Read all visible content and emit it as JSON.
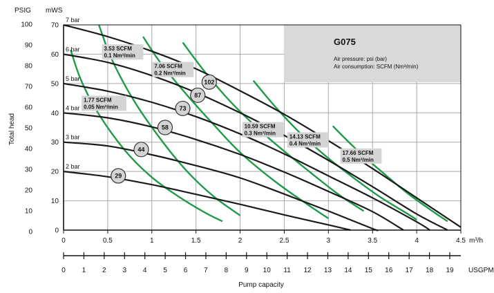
{
  "chart_data": {
    "type": "line",
    "model": "G075",
    "legend_lines": [
      "Air pressure: psi (bar)",
      "Air consumption: SCFM (Nm³/min)"
    ],
    "xlabel": "Pump capacity",
    "ylabel": "Total head",
    "x_unit_primary": "m³/h",
    "x_unit_secondary": "USGPM",
    "y_unit_primary": "mWS",
    "y_unit_secondary": "PSIG",
    "xlim": [
      0,
      4.5
    ],
    "ylim": [
      0,
      70
    ],
    "x_ticks": [
      0,
      0.5,
      1,
      1.5,
      2,
      2.5,
      3,
      3.5,
      4,
      4.5
    ],
    "x_tick_labels": [
      "0",
      "0.5",
      "1",
      "1.5",
      "2",
      "2.5",
      "3",
      "3.5",
      "4",
      "4.5"
    ],
    "y_ticks": [
      0,
      10,
      20,
      30,
      40,
      50,
      60,
      70
    ],
    "y_tick_labels": [
      "0",
      "10",
      "20",
      "30",
      "40",
      "50",
      "60",
      "70"
    ],
    "usgpm_ticks": [
      0,
      1,
      2,
      3,
      4,
      5,
      6,
      7,
      8,
      9,
      10,
      11,
      12,
      13,
      14,
      15,
      16,
      17,
      18,
      19
    ],
    "psig_ticks": [
      0,
      10,
      20,
      30,
      40,
      50,
      60,
      70,
      80,
      90,
      100
    ],
    "grid": true,
    "pressure_curves": [
      {
        "name": "2 bar",
        "x": [
          0,
          0.5,
          1.0,
          1.5,
          2.0,
          2.5,
          3.0,
          3.25
        ],
        "y": [
          20,
          18.2,
          15.5,
          12.2,
          8.8,
          5.2,
          1.8,
          0
        ]
      },
      {
        "name": "3 bar",
        "x": [
          0,
          0.5,
          1.0,
          1.5,
          2.0,
          2.5,
          3.0,
          3.5,
          3.55
        ],
        "y": [
          30,
          28.7,
          25.7,
          22,
          17.8,
          12.3,
          6.5,
          0.5,
          0
        ]
      },
      {
        "name": "4 bar",
        "x": [
          0,
          0.5,
          1.0,
          1.5,
          2.0,
          2.5,
          3.0,
          3.5,
          3.85
        ],
        "y": [
          40,
          38.3,
          35.2,
          30.9,
          25.8,
          19.8,
          13.2,
          6.3,
          0
        ]
      },
      {
        "name": "5 bar",
        "x": [
          0,
          0.5,
          1.0,
          1.5,
          2.0,
          2.5,
          3.0,
          3.5,
          4.0,
          4.15
        ],
        "y": [
          50,
          47.4,
          43.6,
          38.7,
          32.8,
          26,
          18.5,
          11,
          2.8,
          0
        ]
      },
      {
        "name": "6 bar",
        "x": [
          0,
          0.5,
          1.0,
          1.5,
          2.0,
          2.5,
          3.0,
          3.5,
          4.0,
          4.35
        ],
        "y": [
          60,
          57.2,
          52.7,
          46.9,
          40,
          32.3,
          23.8,
          14.8,
          5.5,
          0
        ]
      },
      {
        "name": "7 bar",
        "x": [
          0,
          0.5,
          1.0,
          1.5,
          2.0,
          2.5,
          3.0,
          3.5,
          4.0,
          4.5
        ],
        "y": [
          70,
          66,
          61,
          55,
          47.5,
          39.5,
          30.5,
          21,
          11,
          1
        ]
      }
    ],
    "consumption_curves": [
      {
        "name": "1",
        "x": [
          0.08,
          0.2,
          0.4,
          0.7,
          1.0,
          1.3,
          1.6,
          1.8
        ],
        "y": [
          61.5,
          51,
          39.5,
          27,
          18,
          11.5,
          6,
          3
        ]
      },
      {
        "name": "2",
        "x": [
          0.4,
          0.55,
          0.8,
          1.1,
          1.4,
          1.7,
          2.0
        ],
        "y": [
          70,
          58,
          44,
          31,
          20,
          11.5,
          5
        ]
      },
      {
        "name": "3",
        "x": [
          0.9,
          1.1,
          1.4,
          1.7,
          2.0,
          2.4,
          2.8,
          3.0
        ],
        "y": [
          66,
          57,
          46,
          36,
          26.5,
          16.5,
          8,
          4
        ]
      },
      {
        "name": "4",
        "x": [
          1.35,
          1.6,
          1.9,
          2.3,
          2.7,
          3.1,
          3.4
        ],
        "y": [
          64,
          54,
          43.5,
          32,
          22,
          12.5,
          6.5
        ]
      },
      {
        "name": "5",
        "x": [
          2.15,
          2.4,
          2.7,
          3.0,
          3.3,
          3.6,
          3.9,
          4.0
        ],
        "y": [
          51,
          42,
          32.5,
          24.5,
          17.5,
          11,
          5.5,
          3.5
        ]
      },
      {
        "name": "6",
        "x": [
          3.05,
          3.3,
          3.6,
          3.9,
          4.2,
          4.35
        ],
        "y": [
          35.5,
          28,
          20,
          12.5,
          6,
          3
        ]
      }
    ],
    "consumption_labels": [
      {
        "line1": "3.53 SCFM",
        "line2": "0.1 Nm³/min",
        "x": 0.45,
        "y": 61
      },
      {
        "line1": "7.06 SCFM",
        "line2": "0.2 Nm³/min",
        "x": 1.02,
        "y": 55
      },
      {
        "line1": "1.77 SCFM",
        "line2": "0.05 Nm³/min",
        "x": 0.22,
        "y": 43.5
      },
      {
        "line1": "10.59 SCFM",
        "line2": "0.3 Nm³/min",
        "x": 2.04,
        "y": 34.5
      },
      {
        "line1": "14.13 SCFM",
        "line2": "0.4 Nm³/min",
        "x": 2.55,
        "y": 31
      },
      {
        "line1": "17.66 SCFM",
        "line2": "0.5 Nm³/min",
        "x": 3.15,
        "y": 25.5
      }
    ],
    "stroke_markers": [
      {
        "value": "29",
        "x": 0.62,
        "y": 18.5
      },
      {
        "value": "44",
        "x": 0.88,
        "y": 27.5
      },
      {
        "value": "58",
        "x": 1.15,
        "y": 35
      },
      {
        "value": "73",
        "x": 1.35,
        "y": 41.5
      },
      {
        "value": "87",
        "x": 1.52,
        "y": 46
      },
      {
        "value": "102",
        "x": 1.65,
        "y": 50.5
      }
    ],
    "colors": {
      "pressure_curve": "#1a1a1a",
      "consumption_curve": "#1e9a48",
      "grid": "#a9a9a9",
      "legend_box": "#d9d9d9",
      "label_box": "#d4d4d4",
      "marker_fill": "#d4d4d4"
    }
  }
}
